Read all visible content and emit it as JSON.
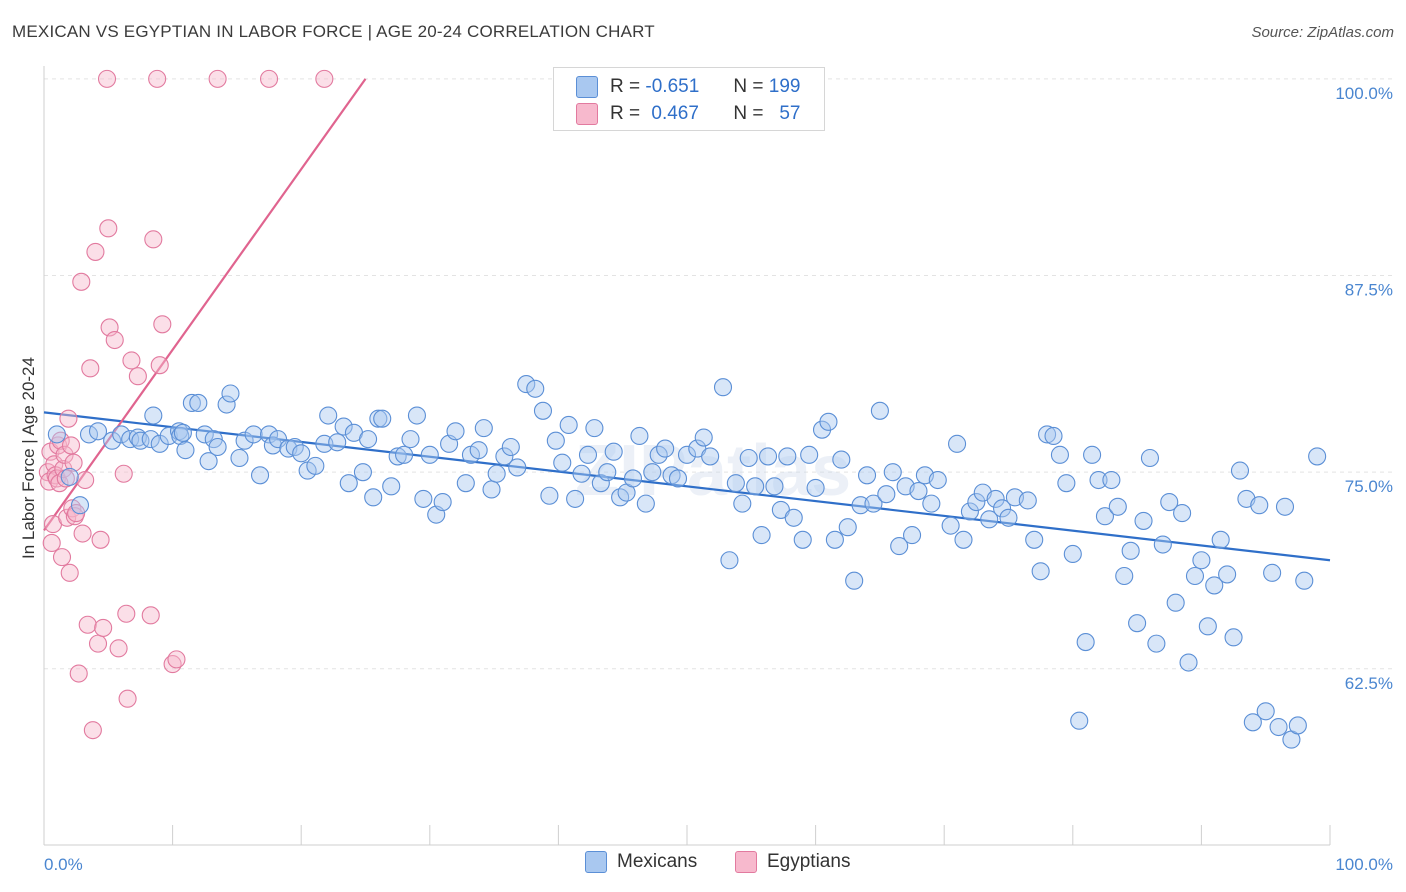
{
  "title": "MEXICAN VS EGYPTIAN IN LABOR FORCE | AGE 20-24 CORRELATION CHART",
  "source": "Source: ZipAtlas.com",
  "watermark": "ZIPatlas",
  "legend_top": {
    "rows": [
      {
        "r_label": "R =",
        "r_value": "-0.651",
        "n_label": "N =",
        "n_value": "199",
        "color": "#a9c8f0",
        "border": "#5b8fd6"
      },
      {
        "r_label": "R =",
        "r_value": "0.467",
        "n_label": "N =",
        "n_value": "57",
        "color": "#f7b9cd",
        "border": "#e27a9f"
      }
    ]
  },
  "legend_bottom": [
    {
      "label": "Mexicans",
      "color": "#a9c8f0",
      "border": "#5b8fd6"
    },
    {
      "label": "Egyptians",
      "color": "#f7b9cd",
      "border": "#e27a9f"
    }
  ],
  "chart_data": {
    "type": "scatter",
    "title": "MEXICAN VS EGYPTIAN IN LABOR FORCE | AGE 20-24 CORRELATION CHART",
    "xlabel": "",
    "ylabel": "In Labor Force | Age 20-24",
    "xlim": [
      0,
      100
    ],
    "ylim": [
      51.3,
      101.2
    ],
    "x_tick_labels": [
      "0.0%",
      "100.0%"
    ],
    "y_ticks": [
      62.5,
      75.0,
      87.5,
      100.0
    ],
    "y_tick_labels": [
      "62.5%",
      "75.0%",
      "87.5%",
      "100.0%"
    ],
    "grid": true,
    "legend_position": "top-center",
    "series": [
      {
        "name": "Mexicans",
        "color": "#5b8fd6",
        "fill": "#a9c8f0",
        "trend": {
          "x": [
            0,
            100
          ],
          "y": [
            78.8,
            69.4
          ]
        },
        "points": [
          [
            1.0,
            77.4
          ],
          [
            2.0,
            74.7
          ],
          [
            2.8,
            72.9
          ],
          [
            3.5,
            77.4
          ],
          [
            4.2,
            77.6
          ],
          [
            5.3,
            77.0
          ],
          [
            6.0,
            77.4
          ],
          [
            6.7,
            77.1
          ],
          [
            7.3,
            77.2
          ],
          [
            7.5,
            77.0
          ],
          [
            8.3,
            77.1
          ],
          [
            8.5,
            78.6
          ],
          [
            9.0,
            76.8
          ],
          [
            9.7,
            77.3
          ],
          [
            10.5,
            77.6
          ],
          [
            10.6,
            77.3
          ],
          [
            10.8,
            77.5
          ],
          [
            11.0,
            76.4
          ],
          [
            11.5,
            79.4
          ],
          [
            12.0,
            79.4
          ],
          [
            12.5,
            77.4
          ],
          [
            12.8,
            75.7
          ],
          [
            13.2,
            77.1
          ],
          [
            13.5,
            76.6
          ],
          [
            14.2,
            79.3
          ],
          [
            14.5,
            80.0
          ],
          [
            15.2,
            75.9
          ],
          [
            15.6,
            77.0
          ],
          [
            16.3,
            77.4
          ],
          [
            16.8,
            74.8
          ],
          [
            17.5,
            77.4
          ],
          [
            17.8,
            76.7
          ],
          [
            18.2,
            77.1
          ],
          [
            19.0,
            76.5
          ],
          [
            19.5,
            76.6
          ],
          [
            20.0,
            76.2
          ],
          [
            20.5,
            75.1
          ],
          [
            21.1,
            75.4
          ],
          [
            21.8,
            76.8
          ],
          [
            22.1,
            78.6
          ],
          [
            22.8,
            76.9
          ],
          [
            23.3,
            77.9
          ],
          [
            23.7,
            74.3
          ],
          [
            24.1,
            77.5
          ],
          [
            24.8,
            75.0
          ],
          [
            25.2,
            77.1
          ],
          [
            25.6,
            73.4
          ],
          [
            26.0,
            78.4
          ],
          [
            26.3,
            78.4
          ],
          [
            27.0,
            74.1
          ],
          [
            27.5,
            76.0
          ],
          [
            28.0,
            76.1
          ],
          [
            28.5,
            77.1
          ],
          [
            29.0,
            78.6
          ],
          [
            29.5,
            73.3
          ],
          [
            30.0,
            76.1
          ],
          [
            30.5,
            72.3
          ],
          [
            31.0,
            73.1
          ],
          [
            31.5,
            76.8
          ],
          [
            32.0,
            77.6
          ],
          [
            32.8,
            74.3
          ],
          [
            33.2,
            76.1
          ],
          [
            33.8,
            76.4
          ],
          [
            34.2,
            77.8
          ],
          [
            34.8,
            73.9
          ],
          [
            35.2,
            74.9
          ],
          [
            35.8,
            76.0
          ],
          [
            36.3,
            76.6
          ],
          [
            36.8,
            75.3
          ],
          [
            37.5,
            80.6
          ],
          [
            38.2,
            80.3
          ],
          [
            38.8,
            78.9
          ],
          [
            39.3,
            73.5
          ],
          [
            39.8,
            77.0
          ],
          [
            40.3,
            75.6
          ],
          [
            40.8,
            78.0
          ],
          [
            41.3,
            73.3
          ],
          [
            41.8,
            74.9
          ],
          [
            42.3,
            76.1
          ],
          [
            42.8,
            77.8
          ],
          [
            43.3,
            74.3
          ],
          [
            43.8,
            75.0
          ],
          [
            44.3,
            76.3
          ],
          [
            44.8,
            73.4
          ],
          [
            45.3,
            73.7
          ],
          [
            45.8,
            74.6
          ],
          [
            46.3,
            77.3
          ],
          [
            46.8,
            73.0
          ],
          [
            47.3,
            75.0
          ],
          [
            47.8,
            76.1
          ],
          [
            48.3,
            76.5
          ],
          [
            48.8,
            74.8
          ],
          [
            49.3,
            74.6
          ],
          [
            50.0,
            76.1
          ],
          [
            50.8,
            76.5
          ],
          [
            51.3,
            77.2
          ],
          [
            51.8,
            76.0
          ],
          [
            52.8,
            80.4
          ],
          [
            53.3,
            69.4
          ],
          [
            53.8,
            74.3
          ],
          [
            54.3,
            73.0
          ],
          [
            54.8,
            75.9
          ],
          [
            55.3,
            74.1
          ],
          [
            55.8,
            71.0
          ],
          [
            56.3,
            76.0
          ],
          [
            56.8,
            74.1
          ],
          [
            57.3,
            72.6
          ],
          [
            57.8,
            76.0
          ],
          [
            58.3,
            72.1
          ],
          [
            59.0,
            70.7
          ],
          [
            59.5,
            76.1
          ],
          [
            60.0,
            74.0
          ],
          [
            60.5,
            77.7
          ],
          [
            61.0,
            78.2
          ],
          [
            61.5,
            70.7
          ],
          [
            62.0,
            75.8
          ],
          [
            62.5,
            71.5
          ],
          [
            63.0,
            68.1
          ],
          [
            63.5,
            72.9
          ],
          [
            64.0,
            74.8
          ],
          [
            64.5,
            73.0
          ],
          [
            65.0,
            78.9
          ],
          [
            65.5,
            73.6
          ],
          [
            66.0,
            75.0
          ],
          [
            66.5,
            70.3
          ],
          [
            67.0,
            74.1
          ],
          [
            67.5,
            71.0
          ],
          [
            68.0,
            73.8
          ],
          [
            68.5,
            74.8
          ],
          [
            69.0,
            73.0
          ],
          [
            69.5,
            74.5
          ],
          [
            70.5,
            71.6
          ],
          [
            71.0,
            76.8
          ],
          [
            71.5,
            70.7
          ],
          [
            72.0,
            72.5
          ],
          [
            72.5,
            73.1
          ],
          [
            73.0,
            73.7
          ],
          [
            73.5,
            72.0
          ],
          [
            74.0,
            73.3
          ],
          [
            74.5,
            72.7
          ],
          [
            75.0,
            72.1
          ],
          [
            75.5,
            73.4
          ],
          [
            76.5,
            73.2
          ],
          [
            77.0,
            70.7
          ],
          [
            77.5,
            68.7
          ],
          [
            78.0,
            77.4
          ],
          [
            78.5,
            77.3
          ],
          [
            79.0,
            76.1
          ],
          [
            79.5,
            74.3
          ],
          [
            80.0,
            69.8
          ],
          [
            80.5,
            59.2
          ],
          [
            81.0,
            64.2
          ],
          [
            81.5,
            76.1
          ],
          [
            82.0,
            74.5
          ],
          [
            82.5,
            72.2
          ],
          [
            83.0,
            74.5
          ],
          [
            83.5,
            72.8
          ],
          [
            84.0,
            68.4
          ],
          [
            84.5,
            70.0
          ],
          [
            85.0,
            65.4
          ],
          [
            85.5,
            71.9
          ],
          [
            86.0,
            75.9
          ],
          [
            86.5,
            64.1
          ],
          [
            87.0,
            70.4
          ],
          [
            87.5,
            73.1
          ],
          [
            88.0,
            66.7
          ],
          [
            88.5,
            72.4
          ],
          [
            89.0,
            62.9
          ],
          [
            89.5,
            68.4
          ],
          [
            90.0,
            69.4
          ],
          [
            90.5,
            65.2
          ],
          [
            91.0,
            67.8
          ],
          [
            91.5,
            70.7
          ],
          [
            92.0,
            68.5
          ],
          [
            92.5,
            64.5
          ],
          [
            93.0,
            75.1
          ],
          [
            93.5,
            73.3
          ],
          [
            94.0,
            59.1
          ],
          [
            94.5,
            72.9
          ],
          [
            95.0,
            59.8
          ],
          [
            95.5,
            68.6
          ],
          [
            96.0,
            58.8
          ],
          [
            96.5,
            72.8
          ],
          [
            97.0,
            58.0
          ],
          [
            97.5,
            58.9
          ],
          [
            98.0,
            68.1
          ],
          [
            99.0,
            76.0
          ]
        ]
      },
      {
        "name": "Egyptians",
        "color": "#e27a9f",
        "fill": "#f7b9cd",
        "trend": {
          "x": [
            0,
            25.0
          ],
          "y": [
            71.3,
            100.0
          ]
        },
        "points": [
          [
            0.3,
            75.0
          ],
          [
            0.4,
            74.4
          ],
          [
            0.5,
            76.3
          ],
          [
            0.6,
            70.5
          ],
          [
            0.7,
            71.7
          ],
          [
            0.8,
            75.5
          ],
          [
            0.9,
            74.8
          ],
          [
            1.0,
            74.6
          ],
          [
            1.1,
            76.7
          ],
          [
            1.2,
            74.3
          ],
          [
            1.3,
            77.0
          ],
          [
            1.4,
            69.6
          ],
          [
            1.5,
            75.2
          ],
          [
            1.6,
            76.1
          ],
          [
            1.7,
            74.6
          ],
          [
            1.8,
            72.1
          ],
          [
            1.9,
            78.4
          ],
          [
            2.0,
            68.6
          ],
          [
            2.1,
            76.7
          ],
          [
            2.2,
            72.7
          ],
          [
            2.3,
            75.6
          ],
          [
            2.4,
            72.2
          ],
          [
            2.5,
            72.4
          ],
          [
            2.7,
            62.2
          ],
          [
            2.9,
            87.1
          ],
          [
            3.0,
            71.1
          ],
          [
            3.2,
            74.5
          ],
          [
            3.4,
            65.3
          ],
          [
            3.6,
            81.6
          ],
          [
            3.8,
            58.6
          ],
          [
            4.0,
            89.0
          ],
          [
            4.2,
            64.1
          ],
          [
            4.4,
            70.7
          ],
          [
            4.6,
            65.1
          ],
          [
            4.9,
            100.0
          ],
          [
            5.0,
            90.5
          ],
          [
            5.1,
            84.2
          ],
          [
            5.5,
            83.4
          ],
          [
            5.8,
            63.8
          ],
          [
            6.2,
            74.9
          ],
          [
            6.4,
            66.0
          ],
          [
            6.5,
            60.6
          ],
          [
            6.8,
            82.1
          ],
          [
            7.3,
            81.1
          ],
          [
            8.3,
            65.9
          ],
          [
            8.5,
            89.8
          ],
          [
            8.8,
            100.0
          ],
          [
            9.0,
            81.8
          ],
          [
            9.2,
            84.4
          ],
          [
            10.0,
            62.8
          ],
          [
            10.3,
            63.1
          ],
          [
            13.5,
            100.0
          ],
          [
            17.5,
            100.0
          ],
          [
            21.8,
            100.0
          ]
        ]
      }
    ]
  }
}
